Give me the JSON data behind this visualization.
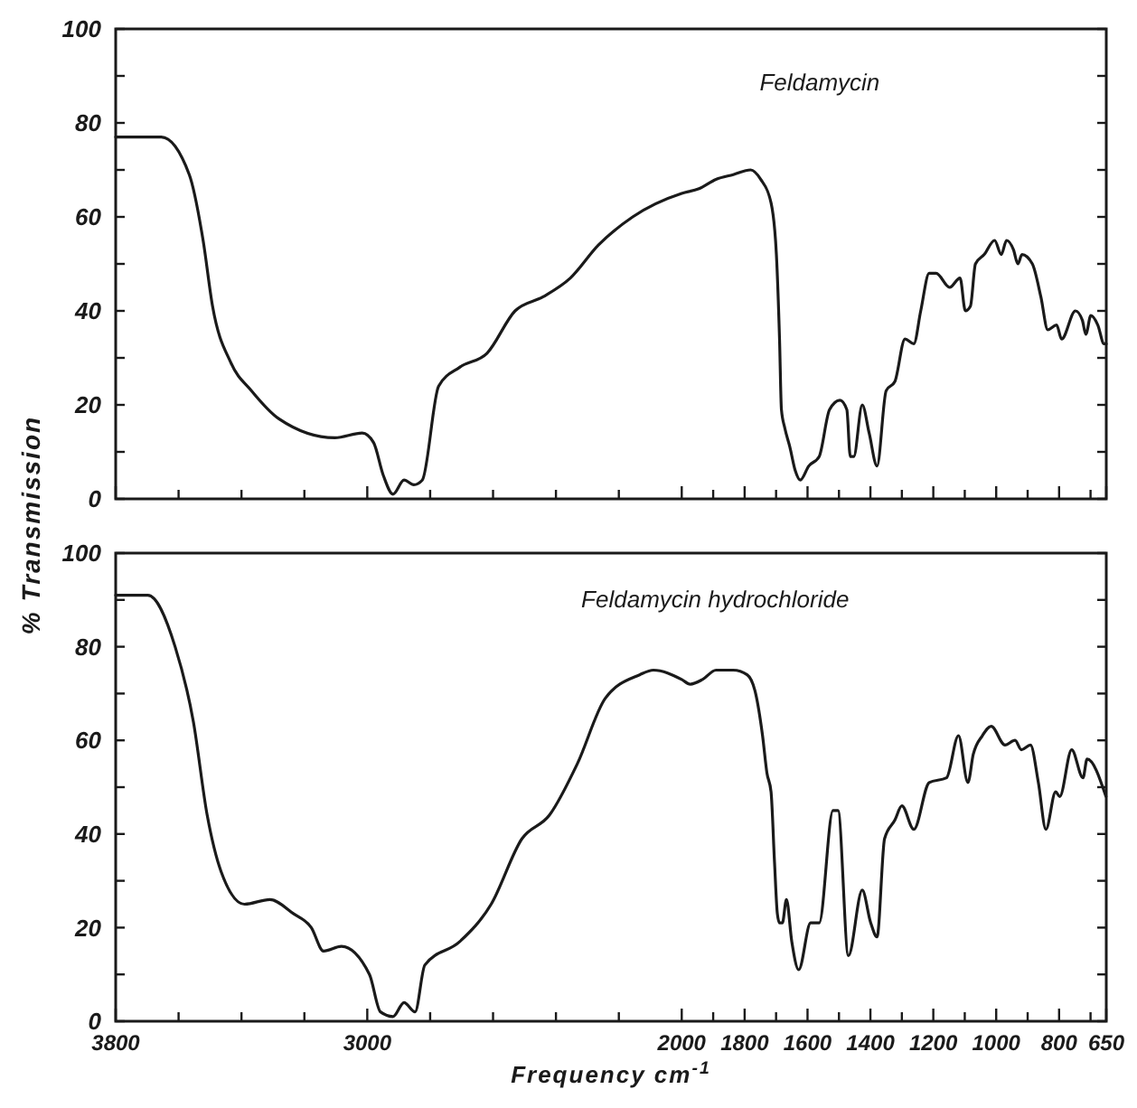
{
  "chart_data": [
    {
      "type": "line",
      "ylabel": "% Transmission",
      "xlim": [
        3800,
        650
      ],
      "ylim": [
        0,
        100
      ],
      "tick_labels": "y",
      "grid": false,
      "marker": "none",
      "line_style": "solid",
      "xticks": [
        3800,
        {
          "value": 3600,
          "label": null
        },
        {
          "value": 3400,
          "label": null
        },
        {
          "value": 3200,
          "label": null
        },
        3000,
        {
          "value": 2800,
          "label": null
        },
        {
          "value": 2600,
          "label": null
        },
        {
          "value": 2400,
          "label": null
        },
        {
          "value": 2200,
          "label": null
        },
        2000,
        {
          "value": 1900,
          "label": null
        },
        1800,
        {
          "value": 1700,
          "label": null
        },
        1600,
        {
          "value": 1500,
          "label": null
        },
        1400,
        {
          "value": 1300,
          "label": null
        },
        1200,
        {
          "value": 1100,
          "label": null
        },
        1000,
        {
          "value": 900,
          "label": null
        },
        800,
        {
          "value": 700,
          "label": null
        },
        650
      ],
      "yticks": [
        0,
        {
          "value": 10,
          "label": null
        },
        20,
        {
          "value": 30,
          "label": null
        },
        40,
        {
          "value": 50,
          "label": null
        },
        60,
        {
          "value": 70,
          "label": null
        },
        80,
        {
          "value": 90,
          "label": null
        },
        100
      ],
      "series": [
        {
          "name": "Feldamycin",
          "color": "#1a1a1a",
          "x": [
            3800,
            3764,
            3655,
            3566,
            3522,
            3492,
            3434,
            3368,
            3280,
            3103,
            3016,
            2980,
            2949,
            2918,
            2883,
            2852,
            2825,
            2773,
            2706,
            2619,
            2530,
            2441,
            2354,
            2265,
            2156,
            2000,
            1945,
            1891,
            1836,
            1781,
            1749,
            1716,
            1699,
            1689,
            1683,
            1672,
            1656,
            1639,
            1623,
            1596,
            1563,
            1530,
            1497,
            1475,
            1464,
            1453,
            1426,
            1404,
            1379,
            1350,
            1322,
            1290,
            1262,
            1240,
            1213,
            1191,
            1148,
            1115,
            1098,
            1082,
            1066,
            1038,
            1005,
            984,
            967,
            945,
            931,
            918,
            885,
            858,
            836,
            808,
            792,
            748,
            726,
            715,
            699,
            677,
            657,
            650
          ],
          "values": [
            77,
            77,
            77,
            69,
            55,
            41,
            29,
            23,
            17,
            13,
            14,
            12,
            5,
            1,
            4,
            3,
            4,
            24,
            28,
            31,
            40,
            43,
            47,
            54,
            60,
            65,
            66,
            68,
            69,
            70,
            68,
            63,
            52,
            34,
            19,
            15,
            11,
            6,
            4,
            7,
            9,
            19,
            21,
            19,
            9,
            9,
            20,
            14,
            7,
            23,
            25,
            34,
            33,
            40,
            48,
            48,
            45,
            47,
            40,
            41,
            50,
            52,
            55,
            52,
            55,
            53,
            50,
            52,
            50,
            43,
            36,
            37,
            34,
            40,
            38,
            35,
            39,
            37,
            33,
            33
          ]
        }
      ]
    },
    {
      "type": "line",
      "xlabel": "Frequency cm$^{-1}$",
      "xlim": [
        3800,
        650
      ],
      "ylim": [
        0,
        100
      ],
      "grid": false,
      "marker": "none",
      "line_style": "solid",
      "xticks": [
        3800,
        {
          "value": 3600,
          "label": null
        },
        {
          "value": 3400,
          "label": null
        },
        {
          "value": 3200,
          "label": null
        },
        3000,
        {
          "value": 2800,
          "label": null
        },
        {
          "value": 2600,
          "label": null
        },
        {
          "value": 2400,
          "label": null
        },
        {
          "value": 2200,
          "label": null
        },
        2000,
        {
          "value": 1900,
          "label": null
        },
        1800,
        {
          "value": 1700,
          "label": null
        },
        1600,
        {
          "value": 1500,
          "label": null
        },
        1400,
        {
          "value": 1300,
          "label": null
        },
        1200,
        {
          "value": 1100,
          "label": null
        },
        1000,
        {
          "value": 900,
          "label": null
        },
        800,
        {
          "value": 700,
          "label": null
        },
        650
      ],
      "yticks": [
        0,
        {
          "value": 10,
          "label": null
        },
        20,
        {
          "value": 30,
          "label": null
        },
        40,
        {
          "value": 50,
          "label": null
        },
        60,
        {
          "value": 70,
          "label": null
        },
        80,
        {
          "value": 90,
          "label": null
        },
        100
      ],
      "series": [
        {
          "name": "Feldamycin hydrochloride",
          "color": "#1a1a1a",
          "x": [
            3800,
            3787,
            3698,
            3611,
            3553,
            3509,
            3465,
            3390,
            3310,
            3235,
            3178,
            3139,
            3082,
            2993,
            2958,
            2918,
            2883,
            2848,
            2817,
            2706,
            2606,
            2508,
            2421,
            2332,
            2243,
            2134,
            2090,
            2000,
            1973,
            1934,
            1891,
            1836,
            1792,
            1765,
            1743,
            1729,
            1716,
            1705,
            1696,
            1689,
            1680,
            1667,
            1650,
            1628,
            1590,
            1563,
            1519,
            1503,
            1470,
            1426,
            1399,
            1379,
            1355,
            1322,
            1300,
            1262,
            1213,
            1158,
            1120,
            1090,
            1073,
            1044,
            1016,
            972,
            940,
            920,
            891,
            866,
            842,
            811,
            798,
            760,
            724,
            711,
            651
          ],
          "values": [
            91,
            91,
            91,
            80,
            64,
            44,
            32,
            25,
            26,
            23,
            20,
            15,
            16,
            10,
            2,
            1,
            4,
            2,
            12,
            17,
            25,
            39,
            44,
            55,
            69,
            74,
            75,
            73,
            72,
            73,
            75,
            75,
            74,
            70,
            61,
            53,
            49,
            34,
            23,
            21,
            21,
            26,
            17,
            11,
            21,
            21,
            45,
            45,
            14,
            28,
            21,
            18,
            39,
            43,
            46,
            41,
            51,
            52,
            61,
            51,
            57,
            61,
            63,
            59,
            60,
            58,
            59,
            51,
            41,
            49,
            48,
            58,
            52,
            56,
            48
          ]
        }
      ]
    }
  ]
}
